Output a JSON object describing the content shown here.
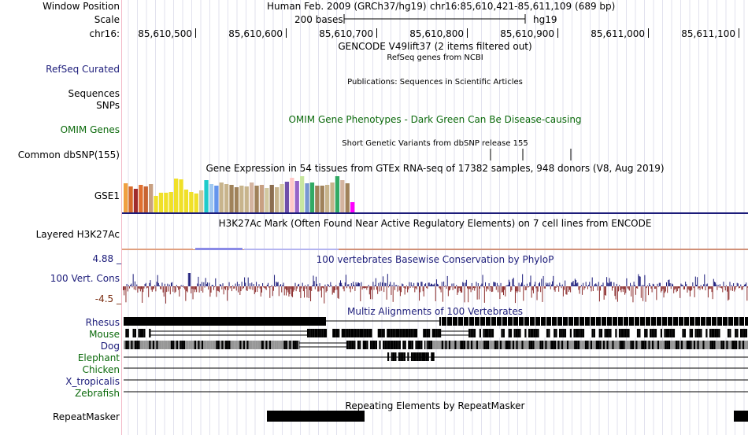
{
  "header": {
    "window_position_label": "Window Position",
    "scale_label": "Scale",
    "chrom_label": "chr16:",
    "assembly": "Human Feb. 2009 (GRCh37/hg19)",
    "position": "chr16:85,610,421-85,611,109 (689 bp)",
    "scale_text": "200 bases",
    "db": "hg19",
    "ruler_ticks": [
      "85,610,500",
      "85,610,600",
      "85,610,700",
      "85,610,800",
      "85,610,900",
      "85,611,000",
      "85,611,100"
    ]
  },
  "tracks": {
    "gencode_title": "GENCODE V49lift37 (2 items filtered out)",
    "refseq_title": "RefSeq genes from NCBI",
    "refseq_label": "RefSeq Curated",
    "publications_title": "Publications: Sequences in Scientific Articles",
    "sequences_label": "Sequences",
    "snps_label": "SNPs",
    "omim_label": "OMIM Genes",
    "omim_title": "OMIM Gene Phenotypes - Dark Green Can Be Disease-causing",
    "dbsnp_title": "Short Genetic Variants from dbSNP release 155",
    "dbsnp_label": "Common dbSNP(155)",
    "gtex_title": "Gene Expression in 54 tissues from GTEx RNA-seq of 17382 samples, 948 donors (V8, Aug 2019)",
    "gtex_label": "GSE1",
    "h3k27_title": "H3K27Ac Mark (Often Found Near Active Regulatory Elements) on 7 cell lines from ENCODE",
    "h3k27_label": "Layered H3K27Ac",
    "cons_title": "100 vertebrates Basewise Conservation by PhyloP",
    "cons_label": "100 Vert. Cons",
    "cons_max": "4.88 _",
    "cons_min": "-4.5 _",
    "multiz_title": "Multiz Alignments of 100 Vertebrates",
    "species": [
      "Rhesus",
      "Mouse",
      "Dog",
      "Elephant",
      "Chicken",
      "X_tropicalis",
      "Zebrafish"
    ],
    "repeat_title": "Repeating Elements by RepeatMasker",
    "repeat_label": "RepeatMasker"
  },
  "colors": {
    "blue_label": "#1c1c7a",
    "green_label": "#0c6a0c",
    "brown_label": "#7a2c10",
    "cons_pos": "#1a1a7a",
    "cons_neg": "#8a2a2a",
    "grid": "#dcdce8"
  },
  "gtex_colors": [
    "#f0a040",
    "#d76a2a",
    "#a02c2c",
    "#e07030",
    "#c86432",
    "#c8a082",
    "#f0e028",
    "#f0e028",
    "#f0e028",
    "#f0e028",
    "#f0e028",
    "#f0e028",
    "#f0e028",
    "#f0e028",
    "#f0e028",
    "#d2c8a0",
    "#1ecbcb",
    "#a0c8f0",
    "#6495ed",
    "#c8b48c",
    "#c8b48c",
    "#a0825a",
    "#a0825a",
    "#c8b48c",
    "#c8b48c",
    "#d4b4a0",
    "#a0825a",
    "#c8a082",
    "#d2c8a0",
    "#8c6e50",
    "#c8b48c",
    "#d2c8a0",
    "#6e50aa",
    "#ffc8c8",
    "#9664c8",
    "#c8e6a0",
    "#7896d2",
    "#32aa64",
    "#a0825a",
    "#a0825a",
    "#c8b48c",
    "#c8b48c",
    "#32aa64",
    "#d4b4a0",
    "#a0825a",
    "#ff00ff"
  ],
  "gtex_heights": [
    0.78,
    0.68,
    0.63,
    0.72,
    0.68,
    0.76,
    0.43,
    0.52,
    0.53,
    0.55,
    0.9,
    0.88,
    0.6,
    0.55,
    0.5,
    0.58,
    0.86,
    0.76,
    0.7,
    0.8,
    0.74,
    0.72,
    0.66,
    0.7,
    0.68,
    0.8,
    0.7,
    0.72,
    0.64,
    0.72,
    0.66,
    0.76,
    0.82,
    0.92,
    0.84,
    0.96,
    0.78,
    0.8,
    0.7,
    0.7,
    0.72,
    0.8,
    0.96,
    0.86,
    0.78,
    0.28
  ]
}
